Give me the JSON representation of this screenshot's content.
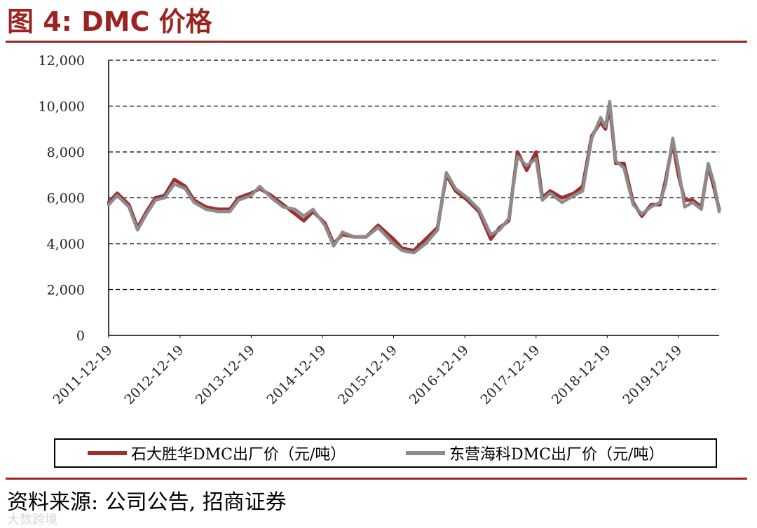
{
  "header": {
    "title": "图 4:  DMC 价格"
  },
  "footer": {
    "source": "资料来源:  公司公告,  招商证券",
    "watermark": "大数跨境"
  },
  "colors": {
    "accent": "#9b2423",
    "series1": "#a03030",
    "series2": "#8c8c8c"
  },
  "chart_data": {
    "type": "line",
    "title": "",
    "xlabel": "",
    "ylabel": "",
    "ylim": [
      0,
      12000
    ],
    "yticks": [
      0,
      2000,
      4000,
      6000,
      8000,
      10000,
      12000
    ],
    "ytick_labels": [
      "0",
      "2,000",
      "4,000",
      "6,000",
      "8,000",
      "10,000",
      "12,000"
    ],
    "xlim": [
      "2011-12-19",
      "2020-07-15"
    ],
    "xtick_labels": [
      "2011-12-19",
      "2012-12-19",
      "2013-12-19",
      "2014-12-19",
      "2015-12-19",
      "2016-12-19",
      "2017-12-19",
      "2018-12-19",
      "2019-12-19"
    ],
    "grid": "horizontal dashed",
    "legend": "bottom",
    "series": [
      {
        "name": "石大胜华DMC出厂价（元/吨）",
        "color": "#a03030",
        "points": [
          [
            "2011-12-19",
            5800
          ],
          [
            "2012-02-01",
            6200
          ],
          [
            "2012-04-01",
            5700
          ],
          [
            "2012-05-15",
            4700
          ],
          [
            "2012-07-01",
            5400
          ],
          [
            "2012-08-15",
            6000
          ],
          [
            "2012-10-01",
            6100
          ],
          [
            "2012-11-20",
            6800
          ],
          [
            "2013-01-15",
            6500
          ],
          [
            "2013-03-01",
            5900
          ],
          [
            "2013-05-01",
            5600
          ],
          [
            "2013-07-01",
            5500
          ],
          [
            "2013-09-01",
            5500
          ],
          [
            "2013-10-15",
            6000
          ],
          [
            "2013-12-19",
            6200
          ],
          [
            "2014-02-01",
            6400
          ],
          [
            "2014-04-01",
            6100
          ],
          [
            "2014-06-01",
            5700
          ],
          [
            "2014-08-01",
            5300
          ],
          [
            "2014-09-15",
            5000
          ],
          [
            "2014-11-01",
            5400
          ],
          [
            "2015-01-01",
            4900
          ],
          [
            "2015-02-15",
            4000
          ],
          [
            "2015-04-01",
            4400
          ],
          [
            "2015-06-01",
            4300
          ],
          [
            "2015-08-01",
            4300
          ],
          [
            "2015-10-01",
            4800
          ],
          [
            "2015-12-19",
            4200
          ],
          [
            "2016-02-01",
            3800
          ],
          [
            "2016-04-01",
            3700
          ],
          [
            "2016-06-01",
            4200
          ],
          [
            "2016-08-01",
            4700
          ],
          [
            "2016-09-15",
            7000
          ],
          [
            "2016-11-01",
            6300
          ],
          [
            "2017-01-01",
            5900
          ],
          [
            "2017-03-01",
            5400
          ],
          [
            "2017-05-01",
            4200
          ],
          [
            "2017-06-15",
            4700
          ],
          [
            "2017-08-01",
            5000
          ],
          [
            "2017-09-15",
            8000
          ],
          [
            "2017-11-01",
            7200
          ],
          [
            "2017-12-19",
            8000
          ],
          [
            "2018-01-20",
            6000
          ],
          [
            "2018-03-01",
            6300
          ],
          [
            "2018-05-01",
            6000
          ],
          [
            "2018-07-01",
            6200
          ],
          [
            "2018-08-15",
            6500
          ],
          [
            "2018-10-01",
            8700
          ],
          [
            "2018-11-15",
            9300
          ],
          [
            "2018-12-10",
            9000
          ],
          [
            "2019-01-01",
            10000
          ],
          [
            "2019-02-01",
            7500
          ],
          [
            "2019-03-15",
            7500
          ],
          [
            "2019-05-01",
            5800
          ],
          [
            "2019-06-15",
            5200
          ],
          [
            "2019-08-01",
            5700
          ],
          [
            "2019-09-15",
            5700
          ],
          [
            "2019-10-15",
            6800
          ],
          [
            "2019-11-20",
            8400
          ],
          [
            "2019-12-19",
            7000
          ],
          [
            "2020-01-20",
            5900
          ],
          [
            "2020-03-01",
            5900
          ],
          [
            "2020-04-15",
            5600
          ],
          [
            "2020-05-20",
            7400
          ],
          [
            "2020-06-20",
            6400
          ],
          [
            "2020-07-15",
            5500
          ]
        ]
      },
      {
        "name": "东营海科DMC出厂价（元/吨）",
        "color": "#8c8c8c",
        "points": [
          [
            "2011-12-19",
            5700
          ],
          [
            "2012-02-01",
            6100
          ],
          [
            "2012-04-01",
            5600
          ],
          [
            "2012-05-15",
            4600
          ],
          [
            "2012-07-01",
            5300
          ],
          [
            "2012-08-15",
            5900
          ],
          [
            "2012-10-01",
            6000
          ],
          [
            "2012-11-20",
            6600
          ],
          [
            "2013-01-15",
            6400
          ],
          [
            "2013-03-01",
            5800
          ],
          [
            "2013-05-01",
            5500
          ],
          [
            "2013-07-01",
            5400
          ],
          [
            "2013-09-01",
            5400
          ],
          [
            "2013-10-15",
            5900
          ],
          [
            "2013-12-19",
            6100
          ],
          [
            "2014-02-01",
            6500
          ],
          [
            "2014-04-01",
            6000
          ],
          [
            "2014-06-01",
            5600
          ],
          [
            "2014-08-01",
            5500
          ],
          [
            "2014-09-15",
            5200
          ],
          [
            "2014-11-01",
            5500
          ],
          [
            "2015-01-01",
            4800
          ],
          [
            "2015-02-15",
            3900
          ],
          [
            "2015-04-01",
            4500
          ],
          [
            "2015-06-01",
            4300
          ],
          [
            "2015-08-01",
            4300
          ],
          [
            "2015-10-01",
            4700
          ],
          [
            "2015-12-19",
            4000
          ],
          [
            "2016-02-01",
            3700
          ],
          [
            "2016-04-01",
            3600
          ],
          [
            "2016-06-01",
            4000
          ],
          [
            "2016-08-01",
            4600
          ],
          [
            "2016-09-15",
            7100
          ],
          [
            "2016-11-01",
            6400
          ],
          [
            "2017-01-01",
            6000
          ],
          [
            "2017-03-01",
            5500
          ],
          [
            "2017-05-01",
            4400
          ],
          [
            "2017-06-15",
            4600
          ],
          [
            "2017-08-01",
            5100
          ],
          [
            "2017-09-15",
            7800
          ],
          [
            "2017-11-01",
            7400
          ],
          [
            "2017-12-19",
            7700
          ],
          [
            "2018-01-20",
            5900
          ],
          [
            "2018-03-01",
            6200
          ],
          [
            "2018-05-01",
            5800
          ],
          [
            "2018-07-01",
            6100
          ],
          [
            "2018-08-15",
            6300
          ],
          [
            "2018-10-01",
            8600
          ],
          [
            "2018-11-15",
            9500
          ],
          [
            "2018-12-10",
            9100
          ],
          [
            "2019-01-01",
            10200
          ],
          [
            "2019-02-01",
            7600
          ],
          [
            "2019-03-15",
            7300
          ],
          [
            "2019-05-01",
            5700
          ],
          [
            "2019-06-15",
            5300
          ],
          [
            "2019-08-01",
            5600
          ],
          [
            "2019-09-15",
            5800
          ],
          [
            "2019-10-15",
            6600
          ],
          [
            "2019-11-20",
            8600
          ],
          [
            "2019-12-19",
            7300
          ],
          [
            "2020-01-20",
            5600
          ],
          [
            "2020-03-01",
            5800
          ],
          [
            "2020-04-15",
            5500
          ],
          [
            "2020-05-20",
            7500
          ],
          [
            "2020-06-20",
            6600
          ],
          [
            "2020-07-15",
            5400
          ]
        ]
      }
    ]
  }
}
